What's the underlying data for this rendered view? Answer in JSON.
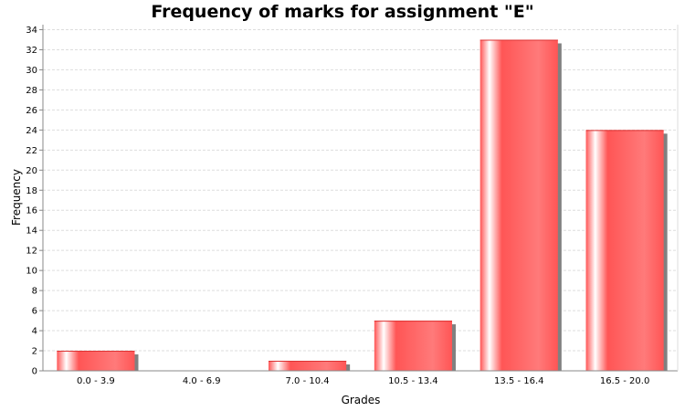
{
  "chart_data": {
    "type": "bar",
    "title": "Frequency of marks for assignment \"E\"",
    "xlabel": "Grades",
    "ylabel": "Frequency",
    "categories": [
      "0.0 - 3.9",
      "4.0 - 6.9",
      "7.0 - 10.4",
      "10.5 - 13.4",
      "13.5 - 16.4",
      "16.5 - 20.0"
    ],
    "values": [
      2,
      0,
      1,
      5,
      33,
      24
    ],
    "ylim": [
      0,
      34.5
    ],
    "yticks": [
      0,
      2,
      4,
      6,
      8,
      10,
      12,
      14,
      16,
      18,
      20,
      22,
      24,
      26,
      28,
      30,
      32,
      34
    ],
    "grid": true,
    "legend": "none",
    "colors": {
      "bar": "#ff5555",
      "bar_highlight": "#ffffff",
      "shadow": "#808080",
      "grid": "#dddddd",
      "axis": "#888888"
    }
  }
}
